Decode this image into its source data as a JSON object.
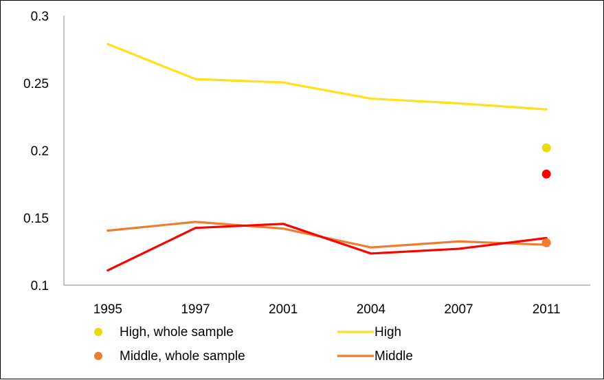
{
  "chart_data": {
    "type": "line",
    "categories": [
      "1995",
      "1997",
      "2001",
      "2004",
      "2007",
      "2011"
    ],
    "ylim": [
      0.1,
      0.3
    ],
    "yticks": [
      "0.1",
      "0.15",
      "0.2",
      "0.25",
      "0.3"
    ],
    "series": [
      {
        "name": "High",
        "kind": "line",
        "color": "#FFE01A",
        "values": [
          0.279,
          0.253,
          0.2505,
          0.2385,
          0.235,
          0.2305
        ]
      },
      {
        "name": "Middle",
        "kind": "line",
        "color": "#ED7D31",
        "values": [
          0.1405,
          0.147,
          0.142,
          0.128,
          0.1325,
          0.13
        ]
      },
      {
        "name": "",
        "kind": "line",
        "color": "#FF0000",
        "values": [
          0.111,
          0.1425,
          0.1455,
          0.1235,
          0.127,
          0.135
        ]
      },
      {
        "name": "High, whole sample",
        "kind": "point",
        "color": "#E8DA0C",
        "x": "2011",
        "value": 0.202
      },
      {
        "name": "Middle, whole sample",
        "kind": "point",
        "color": "#ED7D31",
        "x": "2011",
        "value": 0.1315
      },
      {
        "name": "",
        "kind": "point",
        "color": "#FF0000",
        "x": "2011",
        "value": 0.1825
      }
    ],
    "grid": false,
    "legend_position": "bottom"
  }
}
